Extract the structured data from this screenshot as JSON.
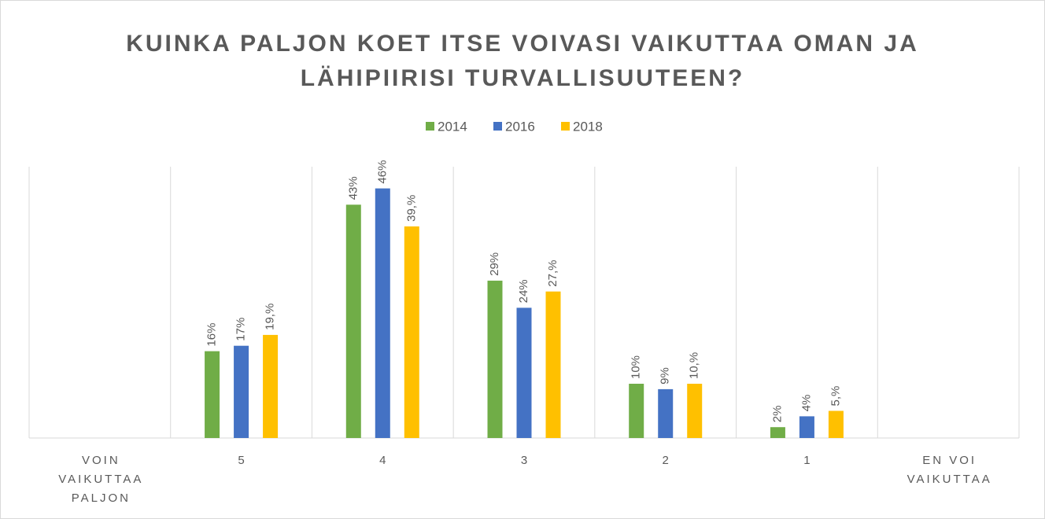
{
  "chart_data": {
    "type": "bar",
    "title": "KUINKA PALJON KOET ITSE VOIVASI VAIKUTTAA OMAN JA LÄHIPIIRISI TURVALLISUUTEEN?",
    "categories": [
      "VOIN VAIKUTTAA PALJON",
      "5",
      "4",
      "3",
      "2",
      "1",
      "EN VOI VAIKUTTAA"
    ],
    "series": [
      {
        "name": "2014",
        "color": "#70ad47",
        "values": [
          null,
          16,
          43,
          29,
          10,
          2,
          null
        ],
        "value_labels": [
          null,
          "16%",
          "43%",
          "29%",
          "10%",
          "2%",
          null
        ]
      },
      {
        "name": "2016",
        "color": "#4472c4",
        "values": [
          null,
          17,
          46,
          24,
          9,
          4,
          null
        ],
        "value_labels": [
          null,
          "17%",
          "46%",
          "24%",
          "9%",
          "4%",
          null
        ]
      },
      {
        "name": "2018",
        "color": "#ffc000",
        "values": [
          null,
          19,
          39,
          27,
          10,
          5,
          null
        ],
        "value_labels": [
          null,
          "19,%",
          "39,%",
          "27,%",
          "10,%",
          "5,%",
          null
        ]
      }
    ],
    "ylim": [
      0,
      50
    ],
    "legend": "top"
  }
}
